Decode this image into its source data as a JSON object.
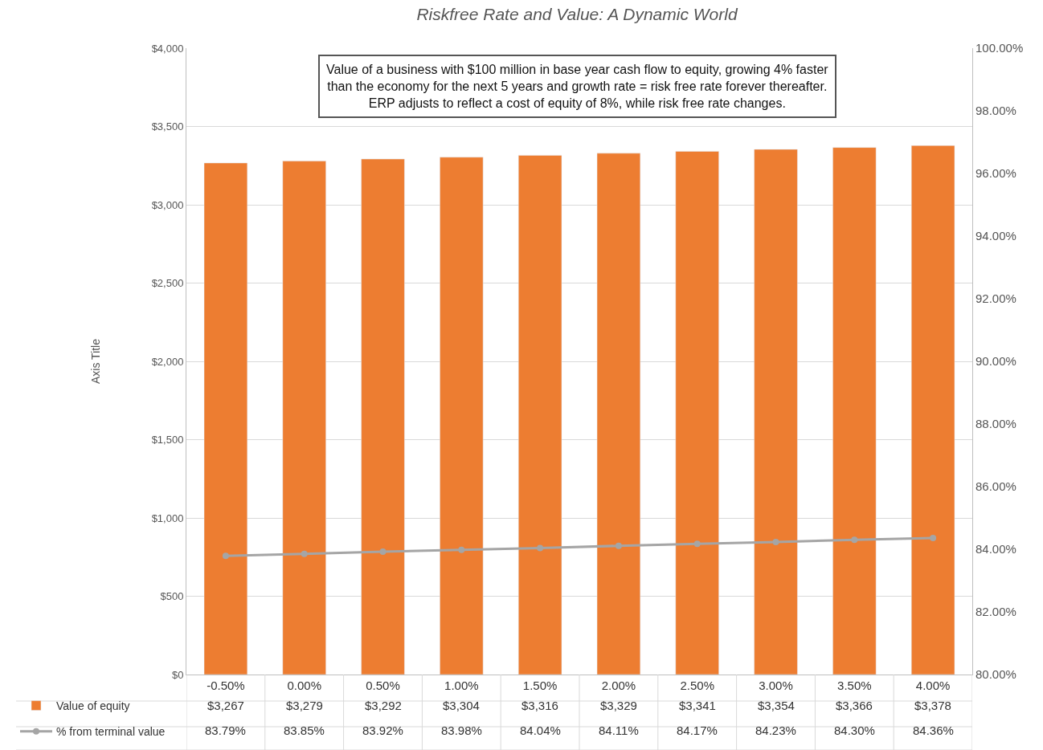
{
  "chart_data": {
    "type": "bar",
    "title": "Riskfree Rate and Value: A Dynamic World",
    "ylabel": "Axis Title",
    "annotations": [
      "Value of a business with $100 million in base year cash flow to equity, growing 4% faster\nthan the economy for the next 5 years and growth rate = risk free rate forever thereafter.\nERP adjusts to reflect a cost of equity of 8%, while risk free rate changes."
    ],
    "categories": [
      "-0.50%",
      "0.00%",
      "0.50%",
      "1.00%",
      "1.50%",
      "2.00%",
      "2.50%",
      "3.00%",
      "3.50%",
      "4.00%"
    ],
    "series": [
      {
        "name": "Value of equity",
        "color": "#ed7d31",
        "values": [
          3267,
          3279,
          3292,
          3304,
          3316,
          3329,
          3341,
          3354,
          3366,
          3378
        ],
        "value_labels": [
          "$3,267",
          "$3,279",
          "$3,292",
          "$3,304",
          "$3,316",
          "$3,329",
          "$3,341",
          "$3,354",
          "$3,366",
          "$3,378"
        ]
      },
      {
        "name": "% from terminal value",
        "type": "line",
        "axis": "y2",
        "color": "#a5a5a5",
        "marker": "circle",
        "values": [
          83.79,
          83.85,
          83.92,
          83.98,
          84.04,
          84.11,
          84.17,
          84.23,
          84.3,
          84.36
        ],
        "value_labels": [
          "83.79%",
          "83.85%",
          "83.92%",
          "83.98%",
          "84.04%",
          "84.11%",
          "84.17%",
          "84.23%",
          "84.30%",
          "84.36%"
        ]
      }
    ],
    "ylim": [
      0,
      4000
    ],
    "yticks": [
      {
        "value": 0,
        "label": "$0"
      },
      {
        "value": 500,
        "label": "$500"
      },
      {
        "value": 1000,
        "label": "$1,000"
      },
      {
        "value": 1500,
        "label": "$1,500"
      },
      {
        "value": 2000,
        "label": "$2,000"
      },
      {
        "value": 2500,
        "label": "$2,500"
      },
      {
        "value": 3000,
        "label": "$3,000"
      },
      {
        "value": 3500,
        "label": "$3,500"
      },
      {
        "value": 4000,
        "label": "$4,000"
      }
    ],
    "y2lim": [
      80,
      100
    ],
    "y2ticks": [
      {
        "value": 80,
        "label": "80.00%"
      },
      {
        "value": 82,
        "label": "82.00%"
      },
      {
        "value": 84,
        "label": "84.00%"
      },
      {
        "value": 86,
        "label": "86.00%"
      },
      {
        "value": 88,
        "label": "88.00%"
      },
      {
        "value": 90,
        "label": "90.00%"
      },
      {
        "value": 92,
        "label": "92.00%"
      },
      {
        "value": 94,
        "label": "94.00%"
      },
      {
        "value": 96,
        "label": "96.00%"
      },
      {
        "value": 98,
        "label": "98.00%"
      },
      {
        "value": 100,
        "label": "100.00%"
      }
    ],
    "grid": "y",
    "legend": "bottom left"
  }
}
